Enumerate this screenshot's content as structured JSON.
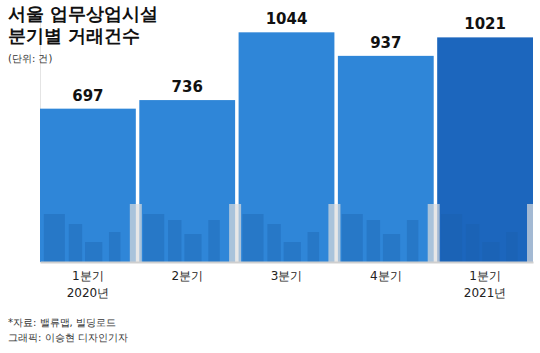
{
  "chart_data": {
    "type": "bar",
    "title": "서울 업무상업시설\n분기별 거래건수",
    "subtitle": "(단위: 건)",
    "categories": [
      "1분기\n2020년",
      "2분기",
      "3분기",
      "4분기",
      "1분기\n2021년"
    ],
    "values": [
      697,
      736,
      1044,
      937,
      1021
    ],
    "colors": [
      "#2f86d8",
      "#2f86d8",
      "#2f86d8",
      "#2f86d8",
      "#1c66bd"
    ],
    "ylim": [
      0,
      1100
    ],
    "data_labels": true,
    "tick_labels": "x",
    "annotations": [
      "*자료: 밸류맵, 빌딩로드",
      "그래픽: 이승현 디자인기자"
    ]
  }
}
